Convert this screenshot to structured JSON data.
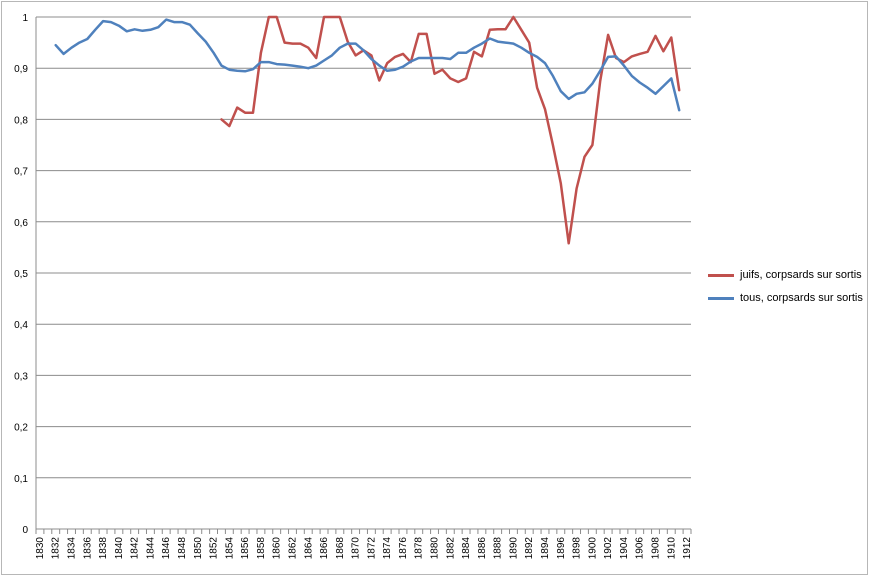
{
  "chart_data": {
    "type": "line",
    "title": "",
    "xlabel": "",
    "ylabel": "",
    "ylim": [
      0,
      1
    ],
    "yticks": [
      "0",
      "0,1",
      "0,2",
      "0,3",
      "0,4",
      "0,5",
      "0,6",
      "0,7",
      "0,8",
      "0,9",
      "1"
    ],
    "xticks": [
      "1830",
      "1832",
      "1834",
      "1836",
      "1838",
      "1840",
      "1842",
      "1844",
      "1846",
      "1848",
      "1850",
      "1852",
      "1854",
      "1856",
      "1858",
      "1860",
      "1862",
      "1864",
      "1866",
      "1868",
      "1870",
      "1872",
      "1874",
      "1876",
      "1878",
      "1880",
      "1882",
      "1884",
      "1886",
      "1888",
      "1890",
      "1892",
      "1894",
      "1896",
      "1898",
      "1900",
      "1902",
      "1904",
      "1906",
      "1908",
      "1910",
      "1912"
    ],
    "grid": true,
    "legend_position": "right",
    "series": [
      {
        "name": "juifs, corpsards sur sortis",
        "color": "#c0504d",
        "points": [
          [
            1853,
            0.8
          ],
          [
            1854,
            0.787
          ],
          [
            1855,
            0.823
          ],
          [
            1856,
            0.813
          ],
          [
            1857,
            0.813
          ],
          [
            1858,
            0.93
          ],
          [
            1859,
            1.0
          ],
          [
            1860,
            1.0
          ],
          [
            1861,
            0.95
          ],
          [
            1862,
            0.948
          ],
          [
            1863,
            0.948
          ],
          [
            1864,
            0.94
          ],
          [
            1865,
            0.92
          ],
          [
            1866,
            1.0
          ],
          [
            1867,
            1.0
          ],
          [
            1868,
            1.0
          ],
          [
            1869,
            0.952
          ],
          [
            1870,
            0.925
          ],
          [
            1871,
            0.935
          ],
          [
            1872,
            0.925
          ],
          [
            1873,
            0.876
          ],
          [
            1874,
            0.91
          ],
          [
            1875,
            0.922
          ],
          [
            1876,
            0.928
          ],
          [
            1877,
            0.912
          ],
          [
            1878,
            0.967
          ],
          [
            1879,
            0.967
          ],
          [
            1880,
            0.889
          ],
          [
            1881,
            0.897
          ],
          [
            1882,
            0.88
          ],
          [
            1883,
            0.873
          ],
          [
            1884,
            0.88
          ],
          [
            1885,
            0.932
          ],
          [
            1886,
            0.923
          ],
          [
            1887,
            0.975
          ],
          [
            1888,
            0.976
          ],
          [
            1889,
            0.976
          ],
          [
            1890,
            1.0
          ],
          [
            1891,
            0.975
          ],
          [
            1892,
            0.95
          ],
          [
            1893,
            0.862
          ],
          [
            1894,
            0.82
          ],
          [
            1895,
            0.75
          ],
          [
            1896,
            0.675
          ],
          [
            1897,
            0.558
          ],
          [
            1898,
            0.665
          ],
          [
            1899,
            0.727
          ],
          [
            1900,
            0.75
          ],
          [
            1901,
            0.875
          ],
          [
            1902,
            0.965
          ],
          [
            1903,
            0.92
          ],
          [
            1904,
            0.912
          ],
          [
            1905,
            0.923
          ],
          [
            1906,
            0.928
          ],
          [
            1907,
            0.932
          ],
          [
            1908,
            0.963
          ],
          [
            1909,
            0.933
          ],
          [
            1910,
            0.96
          ],
          [
            1911,
            0.857
          ]
        ]
      },
      {
        "name": "tous, corpsards sur sortis",
        "color": "#4f81bd",
        "points": [
          [
            1832,
            0.945
          ],
          [
            1833,
            0.928
          ],
          [
            1834,
            0.94
          ],
          [
            1835,
            0.95
          ],
          [
            1836,
            0.957
          ],
          [
            1837,
            0.975
          ],
          [
            1838,
            0.992
          ],
          [
            1839,
            0.99
          ],
          [
            1840,
            0.983
          ],
          [
            1841,
            0.972
          ],
          [
            1842,
            0.976
          ],
          [
            1843,
            0.973
          ],
          [
            1844,
            0.975
          ],
          [
            1845,
            0.98
          ],
          [
            1846,
            0.995
          ],
          [
            1847,
            0.99
          ],
          [
            1848,
            0.99
          ],
          [
            1849,
            0.985
          ],
          [
            1850,
            0.968
          ],
          [
            1851,
            0.952
          ],
          [
            1852,
            0.93
          ],
          [
            1853,
            0.905
          ],
          [
            1854,
            0.897
          ],
          [
            1855,
            0.895
          ],
          [
            1856,
            0.894
          ],
          [
            1857,
            0.898
          ],
          [
            1858,
            0.912
          ],
          [
            1859,
            0.912
          ],
          [
            1860,
            0.908
          ],
          [
            1861,
            0.907
          ],
          [
            1862,
            0.905
          ],
          [
            1863,
            0.903
          ],
          [
            1864,
            0.9
          ],
          [
            1865,
            0.905
          ],
          [
            1866,
            0.915
          ],
          [
            1867,
            0.925
          ],
          [
            1868,
            0.94
          ],
          [
            1869,
            0.948
          ],
          [
            1870,
            0.948
          ],
          [
            1871,
            0.935
          ],
          [
            1872,
            0.918
          ],
          [
            1873,
            0.905
          ],
          [
            1874,
            0.895
          ],
          [
            1875,
            0.897
          ],
          [
            1876,
            0.903
          ],
          [
            1877,
            0.913
          ],
          [
            1878,
            0.92
          ],
          [
            1879,
            0.92
          ],
          [
            1880,
            0.92
          ],
          [
            1881,
            0.92
          ],
          [
            1882,
            0.918
          ],
          [
            1883,
            0.93
          ],
          [
            1884,
            0.93
          ],
          [
            1885,
            0.94
          ],
          [
            1886,
            0.948
          ],
          [
            1887,
            0.958
          ],
          [
            1888,
            0.952
          ],
          [
            1889,
            0.95
          ],
          [
            1890,
            0.948
          ],
          [
            1891,
            0.94
          ],
          [
            1892,
            0.93
          ],
          [
            1893,
            0.922
          ],
          [
            1894,
            0.91
          ],
          [
            1895,
            0.885
          ],
          [
            1896,
            0.855
          ],
          [
            1897,
            0.84
          ],
          [
            1898,
            0.85
          ],
          [
            1899,
            0.853
          ],
          [
            1900,
            0.87
          ],
          [
            1901,
            0.895
          ],
          [
            1902,
            0.922
          ],
          [
            1903,
            0.923
          ],
          [
            1904,
            0.905
          ],
          [
            1905,
            0.885
          ],
          [
            1906,
            0.872
          ],
          [
            1907,
            0.862
          ],
          [
            1908,
            0.85
          ],
          [
            1909,
            0.865
          ],
          [
            1910,
            0.88
          ],
          [
            1911,
            0.818
          ]
        ]
      }
    ]
  }
}
